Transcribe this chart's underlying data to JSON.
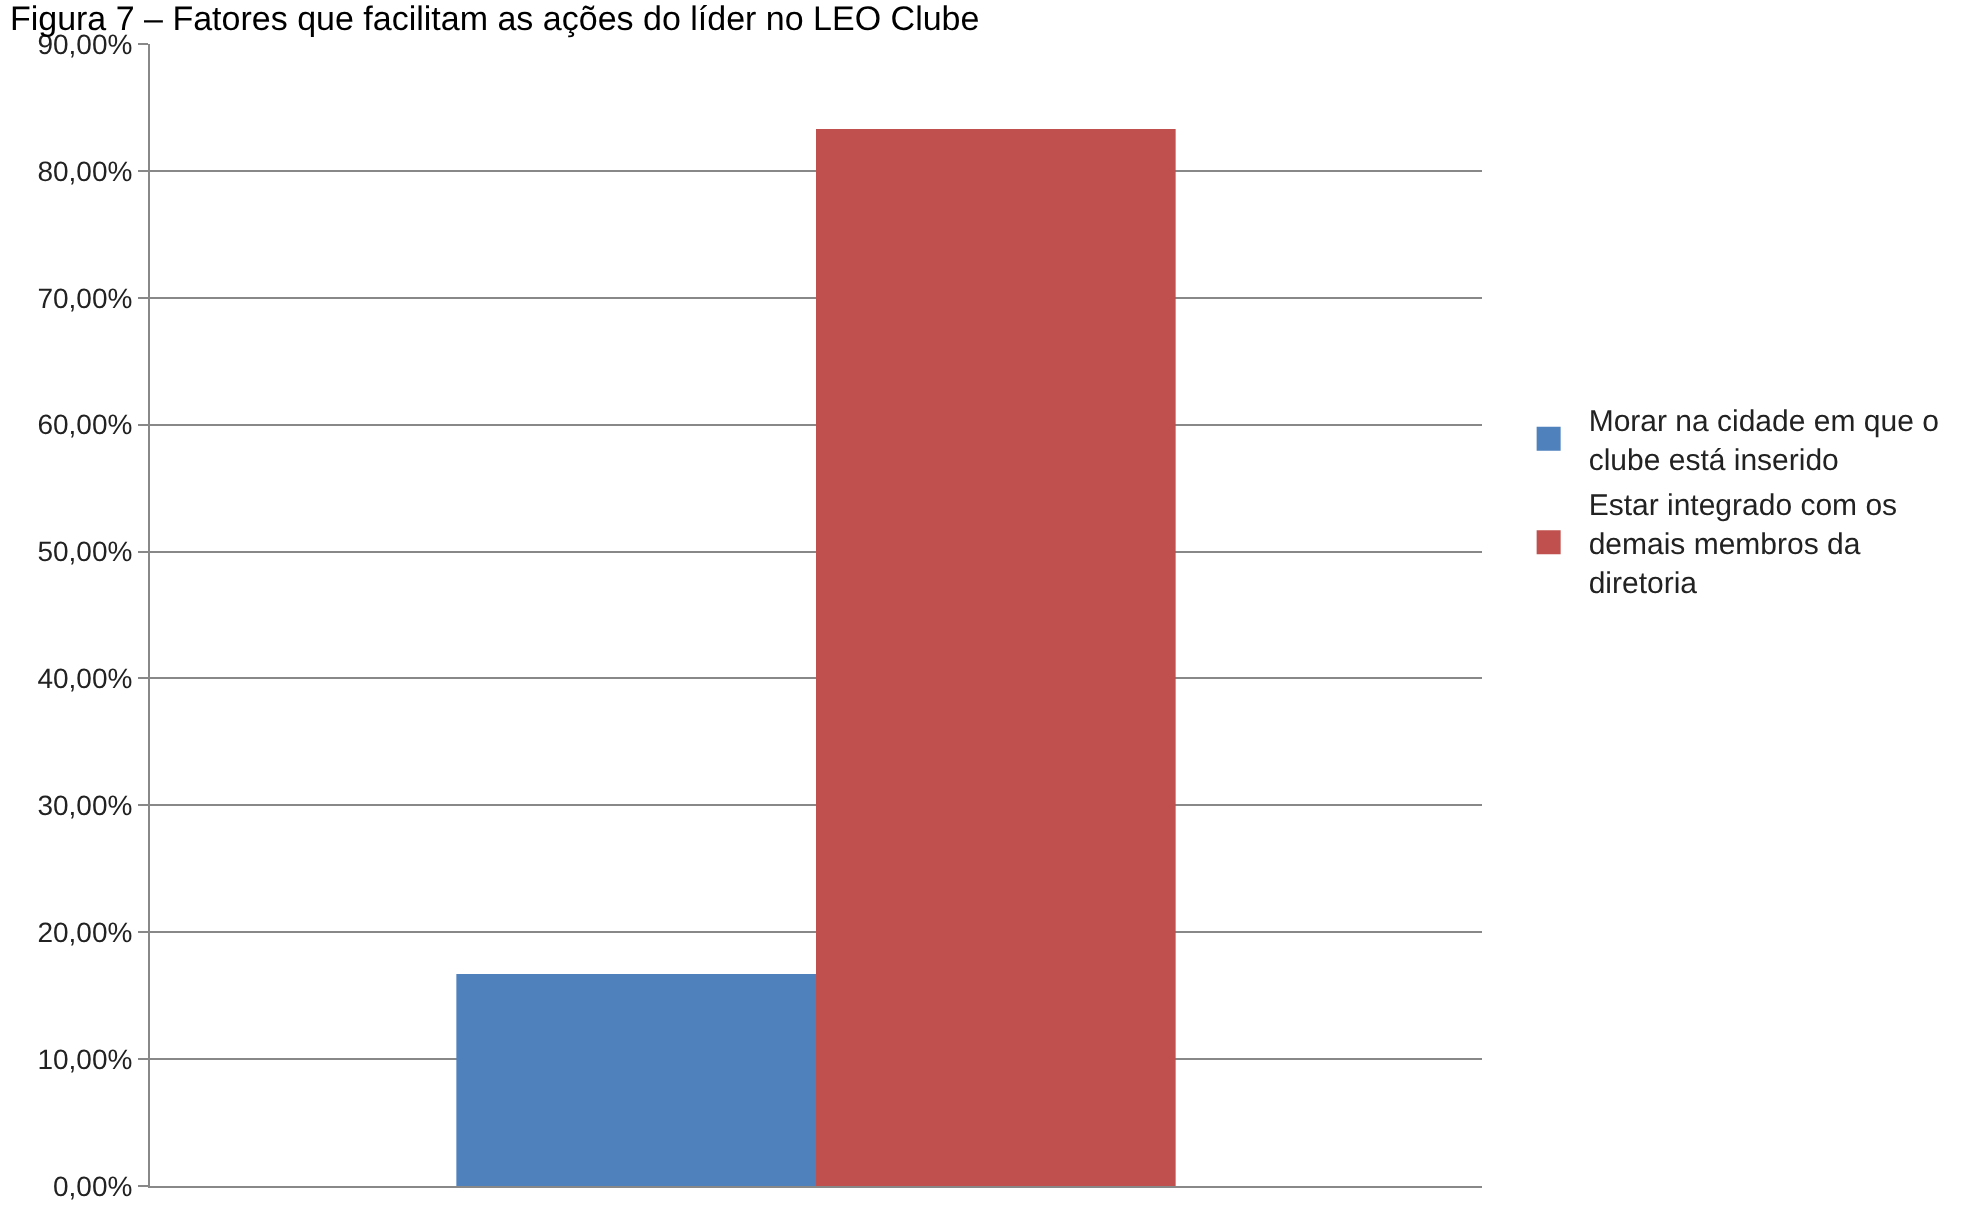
{
  "chart_data": {
    "type": "bar",
    "title": "Figura 7 – Fatores que facilitam as ações do líder no LEO Clube",
    "categories": [
      null
    ],
    "series": [
      {
        "name": "Morar na cidade em que o clube está inserido",
        "color": "#4f81bd",
        "values": [
          16.7
        ]
      },
      {
        "name": "Estar integrado com os demais membros da diretoria",
        "color": "#c0504d",
        "values": [
          83.3
        ]
      }
    ],
    "ylim": [
      0,
      90
    ],
    "yticks": [
      {
        "value": 0,
        "label": "0,00%"
      },
      {
        "value": 10,
        "label": "10,00%"
      },
      {
        "value": 20,
        "label": "20,00%"
      },
      {
        "value": 30,
        "label": "30,00%"
      },
      {
        "value": 40,
        "label": "40,00%"
      },
      {
        "value": 50,
        "label": "50,00%"
      },
      {
        "value": 60,
        "label": "60,00%"
      },
      {
        "value": 70,
        "label": "70,00%"
      },
      {
        "value": 80,
        "label": "80,00%"
      },
      {
        "value": 90,
        "label": "90,00%"
      }
    ],
    "grid": "y",
    "legend": "right"
  }
}
